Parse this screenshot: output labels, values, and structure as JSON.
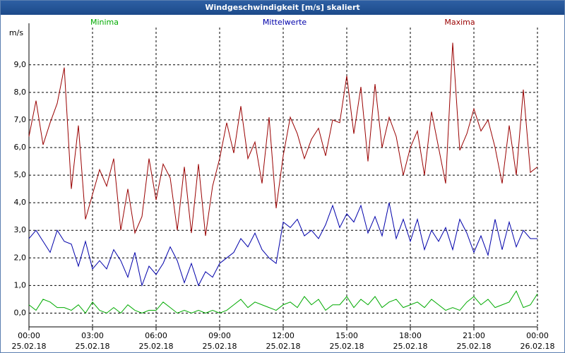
{
  "chart_data": {
    "type": "line",
    "title": "Windgeschwindigkeit [m/s] skaliert",
    "y_label": "m/s",
    "x": [
      0,
      20,
      40,
      60,
      80,
      100,
      120,
      140,
      160,
      180,
      200,
      220,
      240,
      260,
      280,
      300,
      320,
      340,
      360,
      380,
      400,
      420,
      440,
      460,
      480,
      500,
      520,
      540,
      560,
      580,
      600,
      620,
      640,
      660,
      680,
      700,
      720,
      740,
      760,
      780,
      800,
      820,
      840,
      860,
      880,
      900,
      920,
      940,
      960,
      980,
      1000,
      1020,
      1040,
      1060,
      1080,
      1100,
      1120,
      1140,
      1160,
      1180,
      1200,
      1220,
      1240,
      1260,
      1280,
      1300,
      1320,
      1340,
      1360,
      1380,
      1400,
      1420,
      1440
    ],
    "series": [
      {
        "name": "Minima",
        "color": "#00aa00",
        "values": [
          0.3,
          0.1,
          0.5,
          0.4,
          0.2,
          0.2,
          0.1,
          0.3,
          0.0,
          0.4,
          0.1,
          0.0,
          0.2,
          0.0,
          0.3,
          0.1,
          0.0,
          0.1,
          0.1,
          0.4,
          0.2,
          0.0,
          0.1,
          0.0,
          0.1,
          0.0,
          0.1,
          0.0,
          0.1,
          0.3,
          0.5,
          0.2,
          0.4,
          0.3,
          0.2,
          0.1,
          0.3,
          0.4,
          0.2,
          0.6,
          0.3,
          0.5,
          0.1,
          0.3,
          0.3,
          0.6,
          0.2,
          0.5,
          0.3,
          0.6,
          0.2,
          0.4,
          0.5,
          0.2,
          0.3,
          0.4,
          0.2,
          0.5,
          0.3,
          0.1,
          0.2,
          0.1,
          0.4,
          0.6,
          0.3,
          0.5,
          0.2,
          0.3,
          0.4,
          0.8,
          0.2,
          0.3,
          0.7
        ]
      },
      {
        "name": "Mittelwerte",
        "color": "#0000aa",
        "values": [
          2.7,
          3.0,
          2.6,
          2.2,
          3.0,
          2.6,
          2.5,
          1.7,
          2.6,
          1.6,
          1.9,
          1.6,
          2.3,
          1.9,
          1.3,
          2.2,
          1.0,
          1.7,
          1.4,
          1.8,
          2.4,
          1.9,
          1.1,
          1.8,
          1.0,
          1.5,
          1.3,
          1.8,
          2.0,
          2.2,
          2.7,
          2.4,
          2.9,
          2.3,
          2.0,
          1.8,
          3.3,
          3.1,
          3.4,
          2.8,
          3.0,
          2.7,
          3.2,
          3.9,
          3.1,
          3.6,
          3.3,
          3.9,
          2.9,
          3.5,
          2.8,
          4.0,
          2.7,
          3.4,
          2.6,
          3.4,
          2.3,
          3.0,
          2.6,
          3.1,
          2.3,
          3.4,
          2.9,
          2.2,
          2.8,
          2.1,
          3.4,
          2.3,
          3.3,
          2.4,
          3.0,
          2.7,
          2.7
        ]
      },
      {
        "name": "Maxima",
        "color": "#990000",
        "values": [
          6.4,
          7.7,
          6.1,
          6.9,
          7.6,
          8.9,
          4.5,
          6.8,
          3.4,
          4.3,
          5.2,
          4.6,
          5.6,
          3.0,
          4.5,
          2.9,
          3.5,
          5.6,
          4.1,
          5.4,
          4.9,
          3.0,
          5.3,
          2.9,
          5.4,
          2.8,
          4.6,
          5.6,
          6.9,
          5.8,
          7.5,
          5.6,
          6.2,
          4.7,
          7.1,
          3.8,
          5.7,
          7.1,
          6.5,
          5.6,
          6.3,
          6.7,
          5.7,
          7.0,
          6.9,
          8.6,
          6.5,
          8.2,
          5.5,
          8.3,
          6.0,
          7.1,
          6.4,
          5.0,
          6.0,
          6.6,
          5.0,
          7.3,
          6.0,
          4.7,
          9.8,
          5.9,
          6.5,
          7.4,
          6.6,
          7.0,
          6.0,
          4.7,
          6.8,
          5.0,
          8.1,
          5.1,
          5.3
        ]
      }
    ],
    "xlim": [
      0,
      1440
    ],
    "xticks": [
      {
        "value": 0,
        "label": "00:00",
        "date": "25.02.18"
      },
      {
        "value": 180,
        "label": "03:00",
        "date": "25.02.18"
      },
      {
        "value": 360,
        "label": "06:00",
        "date": "25.02.18"
      },
      {
        "value": 540,
        "label": "09:00",
        "date": "25.02.18"
      },
      {
        "value": 720,
        "label": "12:00",
        "date": "25.02.18"
      },
      {
        "value": 900,
        "label": "15:00",
        "date": "25.02.18"
      },
      {
        "value": 1080,
        "label": "18:00",
        "date": "25.02.18"
      },
      {
        "value": 1260,
        "label": "21:00",
        "date": "25.02.18"
      },
      {
        "value": 1440,
        "label": "00:00",
        "date": "26.02.18"
      }
    ],
    "ylim": [
      -0.5,
      10.35
    ],
    "yticks": [
      {
        "value": 0,
        "label": "0,0"
      },
      {
        "value": 1,
        "label": "1,0"
      },
      {
        "value": 2,
        "label": "2,0"
      },
      {
        "value": 3,
        "label": "3,0"
      },
      {
        "value": 4,
        "label": "4,0"
      },
      {
        "value": 5,
        "label": "5,0"
      },
      {
        "value": 6,
        "label": "6,0"
      },
      {
        "value": 7,
        "label": "7,0"
      },
      {
        "value": 8,
        "label": "8,0"
      },
      {
        "value": 9,
        "label": "9,0"
      }
    ],
    "grid": true
  }
}
